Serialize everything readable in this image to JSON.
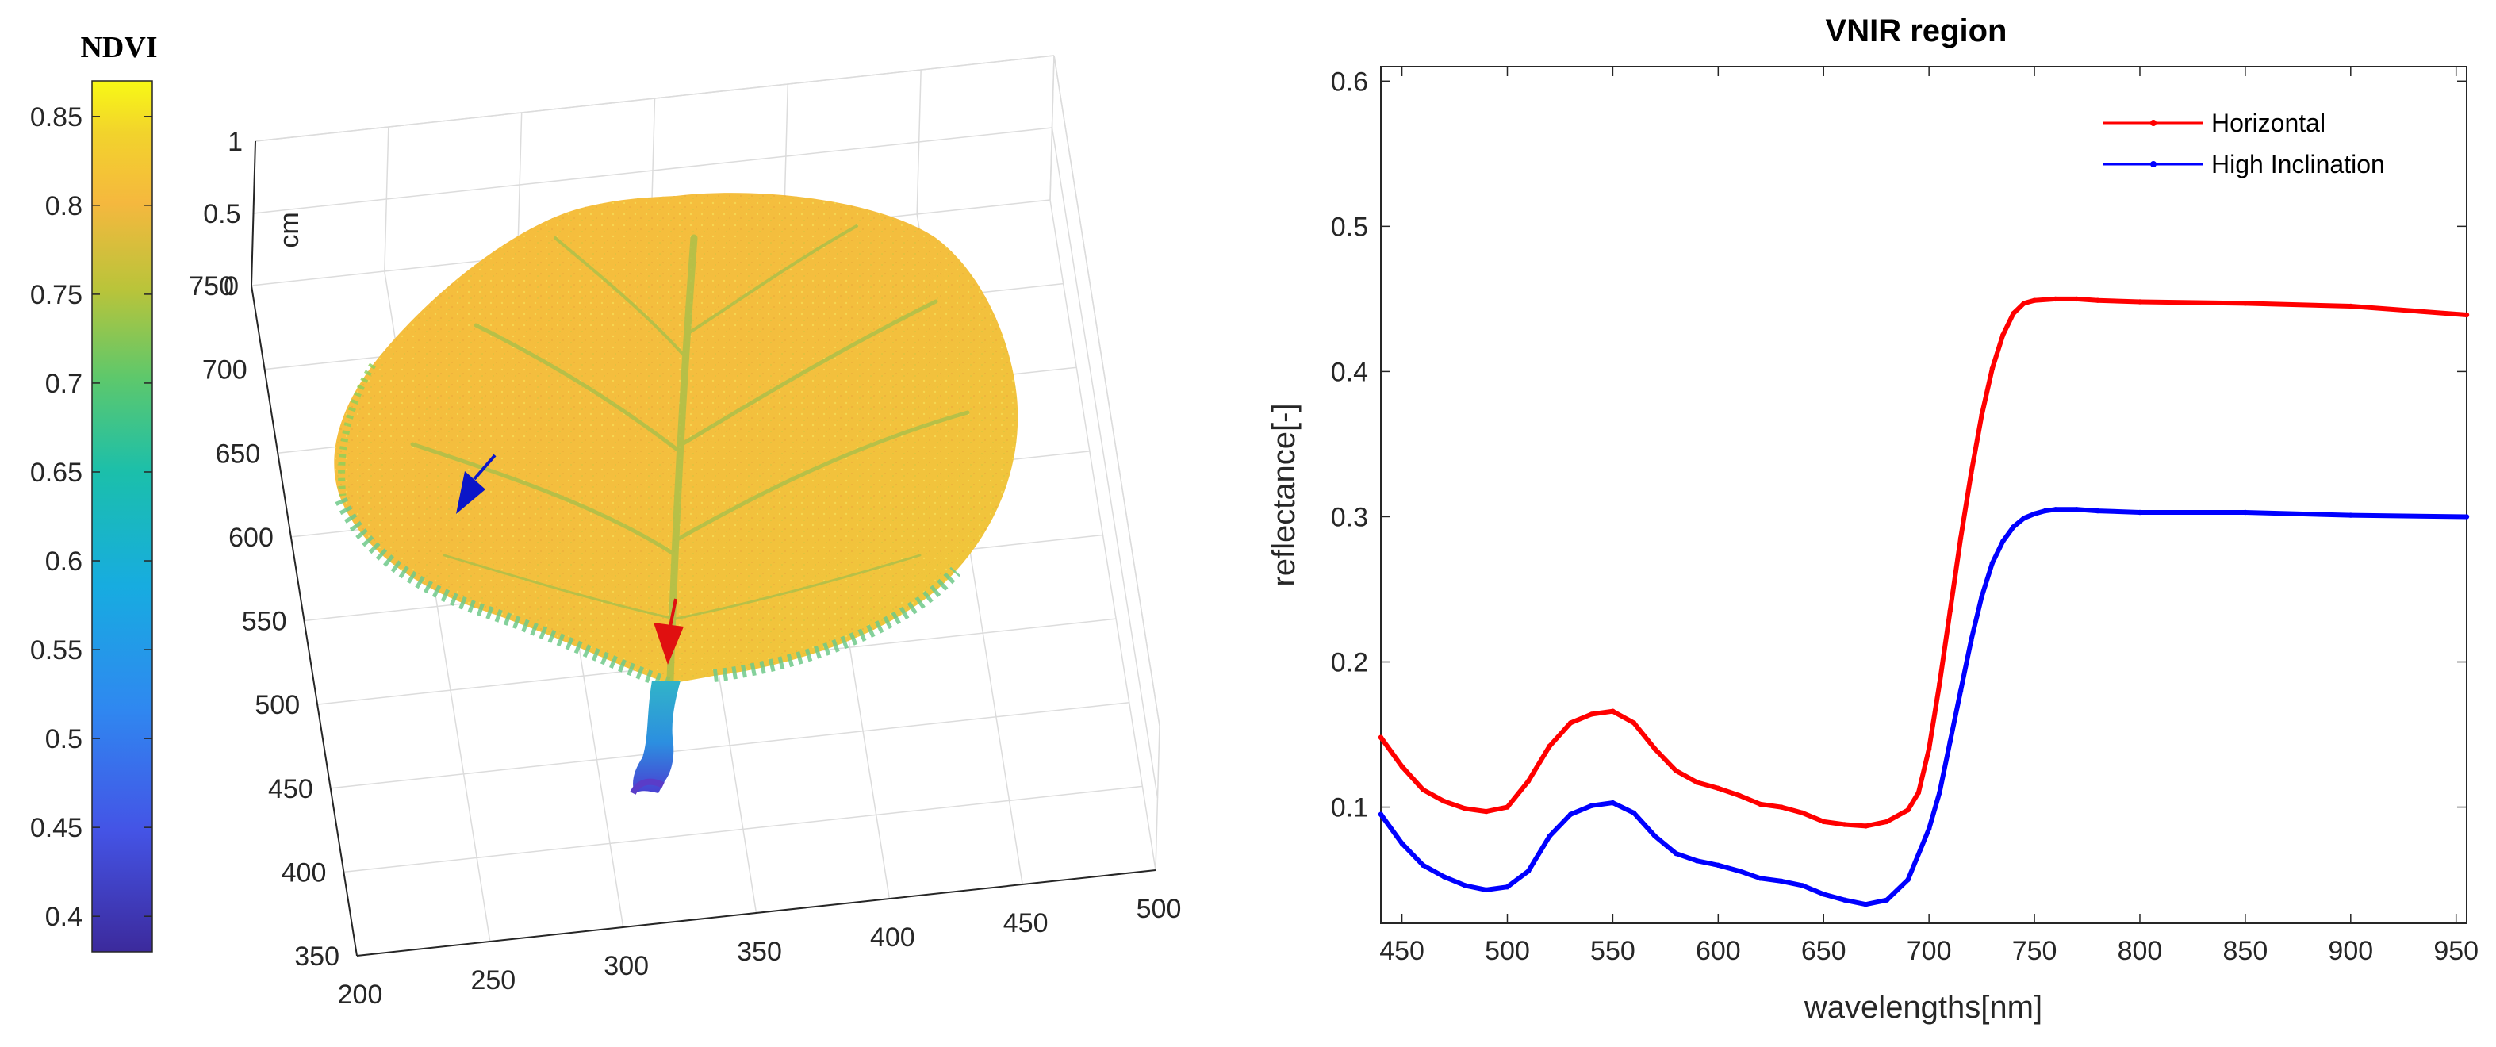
{
  "chart_data": [
    {
      "type": "heatmap",
      "subtype": "3d-point-cloud-surface",
      "colorbar": {
        "title": "NDVI",
        "min": 0.38,
        "max": 0.87,
        "ticks": [
          "0.85",
          "0.8",
          "0.75",
          "0.7",
          "0.65",
          "0.6",
          "0.55",
          "0.5",
          "0.45",
          "0.4"
        ],
        "tick_values": [
          0.85,
          0.8,
          0.75,
          0.7,
          0.65,
          0.6,
          0.55,
          0.5,
          0.45,
          0.4
        ]
      },
      "axes": {
        "x": {
          "range": [
            200,
            500
          ],
          "ticks": [
            "200",
            "250",
            "300",
            "350",
            "400",
            "450",
            "500"
          ]
        },
        "y": {
          "range": [
            350,
            750
          ],
          "ticks": [
            "350",
            "400",
            "450",
            "500",
            "550",
            "600",
            "650",
            "700",
            "750"
          ]
        },
        "z": {
          "label": "cm",
          "range": [
            0,
            1
          ],
          "ticks": [
            "0",
            "0.5",
            "1"
          ]
        }
      },
      "annotations": [
        {
          "kind": "arrow",
          "color": "#0b16c8",
          "meaning": "high inclination region"
        },
        {
          "kind": "arrow",
          "color": "#e01010",
          "meaning": "horizontal region"
        }
      ]
    },
    {
      "type": "line",
      "title": "VNIR region",
      "xlabel": "wavelengths[nm]",
      "ylabel": "reflectance[-]",
      "xlim": [
        440,
        955
      ],
      "ylim": [
        0.02,
        0.61
      ],
      "xticks": [
        450,
        500,
        550,
        600,
        650,
        700,
        750,
        800,
        850,
        900,
        950
      ],
      "yticks": [
        0.1,
        0.2,
        0.3,
        0.4,
        0.5,
        0.6
      ],
      "legend_position": "top-right",
      "series": [
        {
          "name": "Horizontal",
          "color": "#ff0000",
          "x": [
            440,
            450,
            460,
            470,
            480,
            490,
            500,
            510,
            520,
            530,
            540,
            550,
            560,
            570,
            580,
            590,
            600,
            610,
            620,
            630,
            640,
            650,
            660,
            670,
            680,
            690,
            695,
            700,
            705,
            710,
            715,
            720,
            725,
            730,
            735,
            740,
            745,
            750,
            760,
            770,
            780,
            800,
            850,
            900,
            955
          ],
          "values": [
            0.148,
            0.128,
            0.112,
            0.104,
            0.099,
            0.097,
            0.1,
            0.118,
            0.142,
            0.158,
            0.164,
            0.166,
            0.158,
            0.14,
            0.125,
            0.117,
            0.113,
            0.108,
            0.102,
            0.1,
            0.096,
            0.09,
            0.088,
            0.087,
            0.09,
            0.098,
            0.11,
            0.14,
            0.185,
            0.235,
            0.285,
            0.33,
            0.37,
            0.402,
            0.425,
            0.44,
            0.447,
            0.449,
            0.45,
            0.45,
            0.449,
            0.448,
            0.447,
            0.445,
            0.439
          ]
        },
        {
          "name": "High Inclination",
          "color": "#0000ff",
          "x": [
            440,
            450,
            460,
            470,
            480,
            490,
            500,
            510,
            520,
            530,
            540,
            550,
            560,
            570,
            580,
            590,
            600,
            610,
            620,
            630,
            640,
            650,
            660,
            670,
            680,
            690,
            700,
            705,
            710,
            715,
            720,
            725,
            730,
            735,
            740,
            745,
            750,
            755,
            760,
            770,
            780,
            800,
            850,
            900,
            955
          ],
          "values": [
            0.095,
            0.075,
            0.06,
            0.052,
            0.046,
            0.043,
            0.045,
            0.056,
            0.08,
            0.095,
            0.101,
            0.103,
            0.096,
            0.08,
            0.068,
            0.063,
            0.06,
            0.056,
            0.051,
            0.049,
            0.046,
            0.04,
            0.036,
            0.033,
            0.036,
            0.05,
            0.085,
            0.11,
            0.145,
            0.18,
            0.215,
            0.245,
            0.268,
            0.283,
            0.293,
            0.299,
            0.302,
            0.304,
            0.305,
            0.305,
            0.304,
            0.303,
            0.303,
            0.301,
            0.3
          ]
        }
      ]
    }
  ]
}
